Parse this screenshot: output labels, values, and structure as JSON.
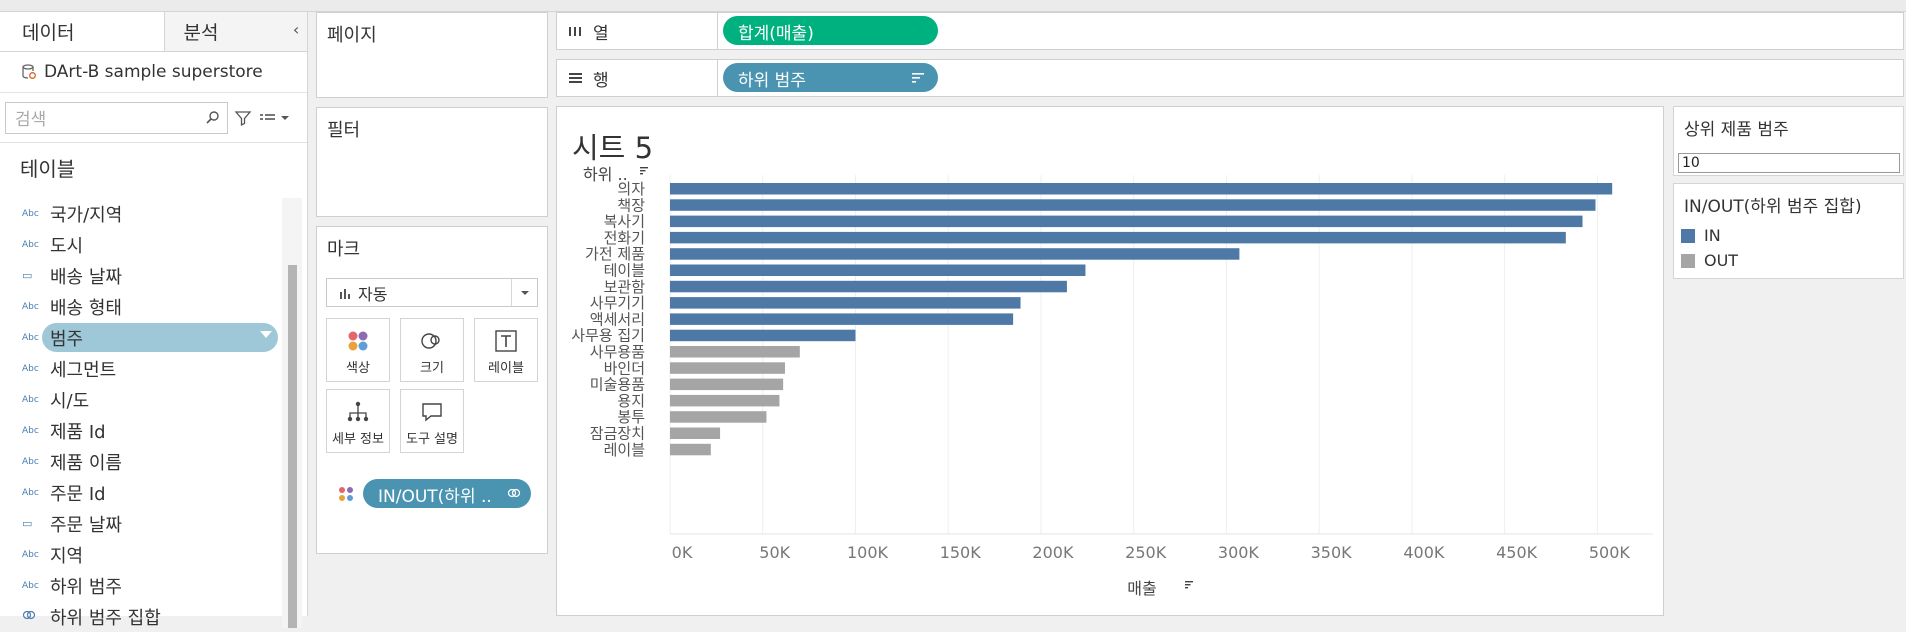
{
  "data_pane": {
    "tab_data": "데이터",
    "tab_analytics": "분석",
    "collapse": "‹",
    "datasource": "DArt-B sample superstore",
    "search_placeholder": "검색",
    "section_title": "테이블",
    "fields": [
      {
        "type": "Abc",
        "label": "국가/지역"
      },
      {
        "type": "Abc",
        "label": "도시"
      },
      {
        "type": "date",
        "label": "배송 날짜"
      },
      {
        "type": "Abc",
        "label": "배송 형태"
      },
      {
        "type": "Abc",
        "label": "범주",
        "selected": true
      },
      {
        "type": "Abc",
        "label": "세그먼트"
      },
      {
        "type": "Abc",
        "label": "시/도"
      },
      {
        "type": "Abc",
        "label": "제품 Id"
      },
      {
        "type": "Abc",
        "label": "제품 이름"
      },
      {
        "type": "Abc",
        "label": "주문 Id"
      },
      {
        "type": "date",
        "label": "주문 날짜"
      },
      {
        "type": "Abc",
        "label": "지역"
      },
      {
        "type": "Abc",
        "label": "하위 범주"
      },
      {
        "type": "set",
        "label": "하위 범주 집합"
      }
    ]
  },
  "cards": {
    "pages_title": "페이지",
    "filters_title": "필터",
    "marks_title": "마크",
    "marks_type": "자동",
    "mark_buttons": {
      "color": "색상",
      "size": "크기",
      "label": "레이블",
      "detail": "세부 정보",
      "tooltip": "도구 설명"
    },
    "mark_pill": "IN/OUT(하위 ..",
    "pill_color_green": "#00b180",
    "pill_color_blue": "#4a94b2"
  },
  "shelves": {
    "columns_label": "열",
    "columns_pill": "합계(매출)",
    "rows_label": "행",
    "rows_pill": "하위 범주"
  },
  "view": {
    "sheet_title": "시트 5",
    "row_header": "하위 ..",
    "x_axis_title": "매출"
  },
  "chart_data": {
    "type": "bar",
    "orientation": "horizontal",
    "categories": [
      "의자",
      "책장",
      "복사기",
      "전화기",
      "가전 제품",
      "테이블",
      "보관함",
      "사무기기",
      "액세서리",
      "사무용 집기",
      "사무용품",
      "바인더",
      "미술용품",
      "용지",
      "봉투",
      "잠금장치",
      "레이블"
    ],
    "values": [
      508000,
      499000,
      492000,
      483000,
      307000,
      224000,
      214000,
      189000,
      185000,
      100000,
      70000,
      62000,
      61000,
      59000,
      52000,
      27000,
      22000
    ],
    "set_membership": [
      "IN",
      "IN",
      "IN",
      "IN",
      "IN",
      "IN",
      "IN",
      "IN",
      "IN",
      "IN",
      "OUT",
      "OUT",
      "OUT",
      "OUT",
      "OUT",
      "OUT",
      "OUT"
    ],
    "series_colors": {
      "IN": "#4e79a7",
      "OUT": "#a5a5a5"
    },
    "x_ticks": [
      "0K",
      "50K",
      "100K",
      "150K",
      "200K",
      "250K",
      "300K",
      "350K",
      "400K",
      "450K",
      "500K"
    ],
    "xlabel": "매출",
    "xlim": [
      0,
      530000
    ],
    "grid": true,
    "legend_position": "right"
  },
  "parameter": {
    "title": "상위 제품 범주",
    "value": "10"
  },
  "legend": {
    "title": "IN/OUT(하위 범주 집합)",
    "items": [
      {
        "label": "IN",
        "color": "#4e79a7"
      },
      {
        "label": "OUT",
        "color": "#a5a5a5"
      }
    ]
  }
}
